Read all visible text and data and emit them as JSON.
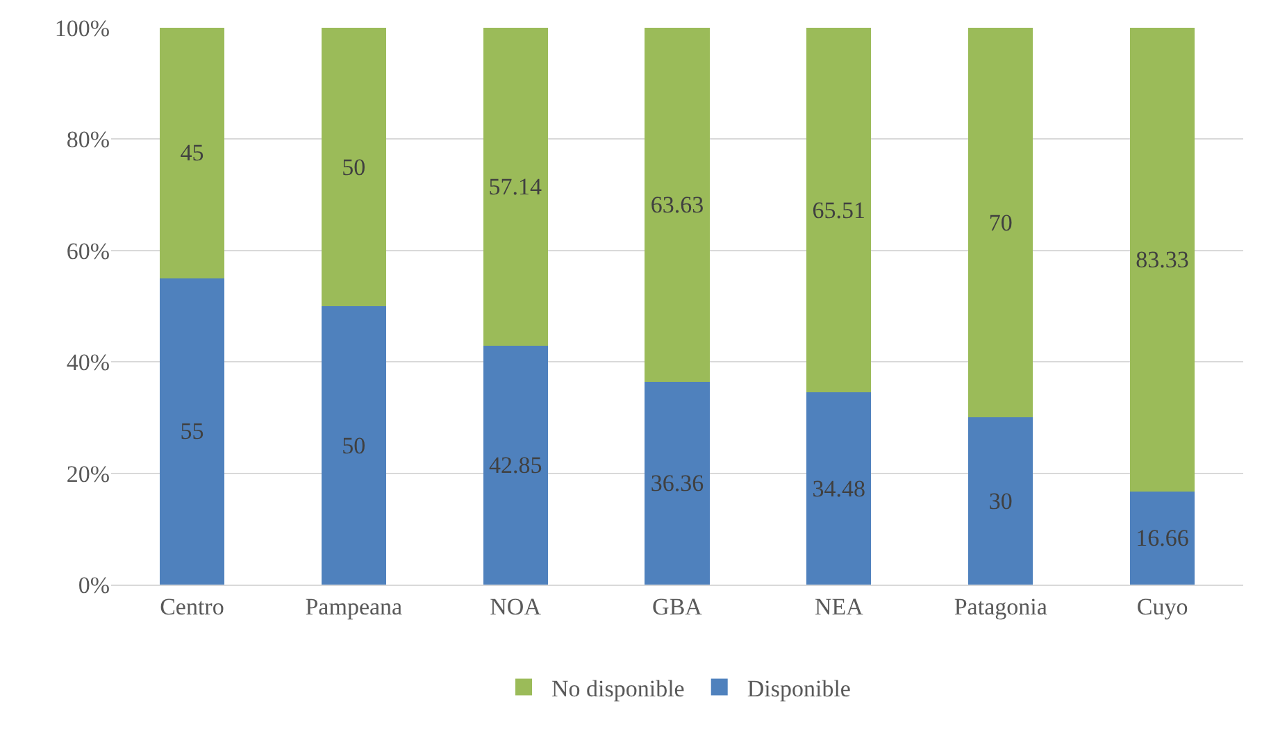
{
  "chart_data": {
    "type": "bar",
    "stacked": true,
    "categories": [
      "Centro",
      "Pampeana",
      "NOA",
      "GBA",
      "NEA",
      "Patagonia",
      "Cuyo"
    ],
    "series": [
      {
        "name": "Disponible",
        "color": "#4f81bd",
        "values": [
          55,
          50,
          42.85,
          36.36,
          34.48,
          30,
          16.66
        ]
      },
      {
        "name": "No disponible",
        "color": "#9bbb59",
        "values": [
          45,
          50,
          57.14,
          63.63,
          65.51,
          70,
          83.33
        ]
      }
    ],
    "ylim": [
      0,
      100
    ],
    "yticks": [
      {
        "value": 0,
        "label": "0%"
      },
      {
        "value": 20,
        "label": "20%"
      },
      {
        "value": 40,
        "label": "40%"
      },
      {
        "value": 60,
        "label": "60%"
      },
      {
        "value": 80,
        "label": "80%"
      },
      {
        "value": 100,
        "label": "100%"
      }
    ],
    "grid": "y",
    "legend": "bottom",
    "data_labels": true
  }
}
